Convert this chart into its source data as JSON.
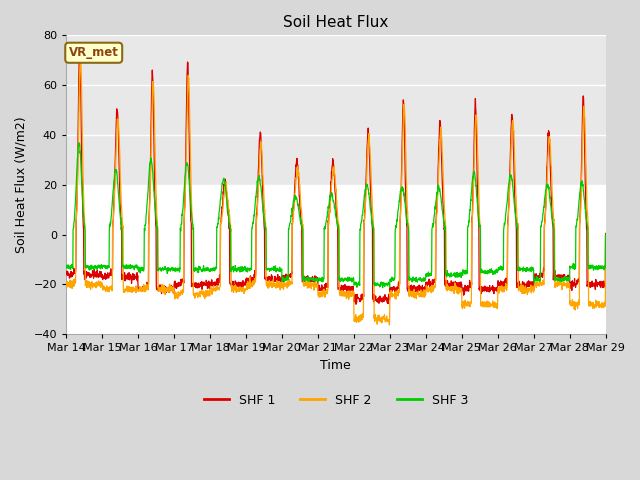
{
  "title": "Soil Heat Flux",
  "xlabel": "Time",
  "ylabel": "Soil Heat Flux (W/m2)",
  "ylim": [
    -40,
    80
  ],
  "yticks": [
    -40,
    -20,
    0,
    20,
    40,
    60,
    80
  ],
  "fig_bg_color": "#d8d8d8",
  "plot_bg_color": "#ffffff",
  "band_color": "#e8e8e8",
  "shf1_color": "#dd0000",
  "shf2_color": "#ffa500",
  "shf3_color": "#00cc00",
  "legend_label": "VR_met",
  "series_labels": [
    "SHF 1",
    "SHF 2",
    "SHF 3"
  ],
  "xtick_labels": [
    "Mar 14",
    "Mar 15",
    "Mar 16",
    "Mar 17",
    "Mar 18",
    "Mar 19",
    "Mar 20",
    "Mar 21",
    "Mar 22",
    "Mar 23",
    "Mar 24",
    "Mar 25",
    "Mar 26",
    "Mar 27",
    "Mar 28",
    "Mar 29"
  ],
  "n_days": 15,
  "pts_per_day": 144
}
